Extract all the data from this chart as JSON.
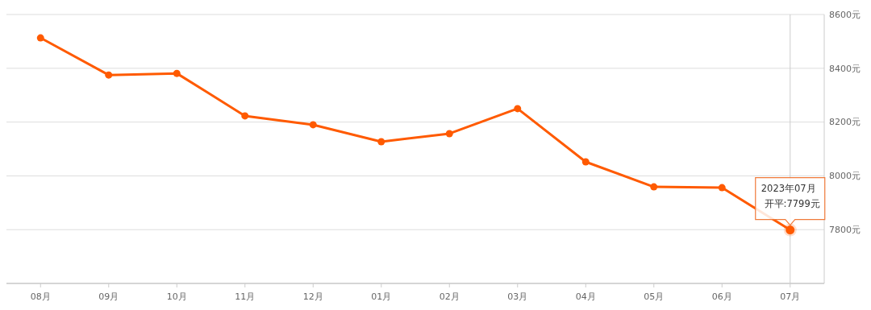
{
  "chart_data": {
    "type": "line",
    "categories": [
      "08月",
      "09月",
      "10月",
      "11月",
      "12月",
      "01月",
      "02月",
      "03月",
      "04月",
      "05月",
      "06月",
      "07月"
    ],
    "series": [
      {
        "color": "#ff5a00",
        "values": [
          8513,
          8375,
          8381,
          8223,
          8190,
          8127,
          8157,
          8250,
          8052,
          7959,
          7956,
          7799
        ]
      }
    ],
    "ylim": [
      7600,
      8600
    ],
    "yticks": [
      {
        "value": 7600,
        "label": null
      },
      {
        "value": 7800,
        "label": "7800元"
      },
      {
        "value": 8000,
        "label": "8000元"
      },
      {
        "value": 8200,
        "label": "8200元"
      },
      {
        "value": 8400,
        "label": "8400元"
      },
      {
        "value": 8600,
        "label": "8600元"
      }
    ],
    "grid": "y",
    "marker": "circle",
    "line_style": "solid",
    "ref_lines": [
      {
        "axis": "x",
        "value": "07月",
        "color": "#cccccc"
      }
    ],
    "annotations": [
      "2023年07月",
      {
        "text": "开平:7799元",
        "x": "07月",
        "y": 7799
      }
    ]
  }
}
